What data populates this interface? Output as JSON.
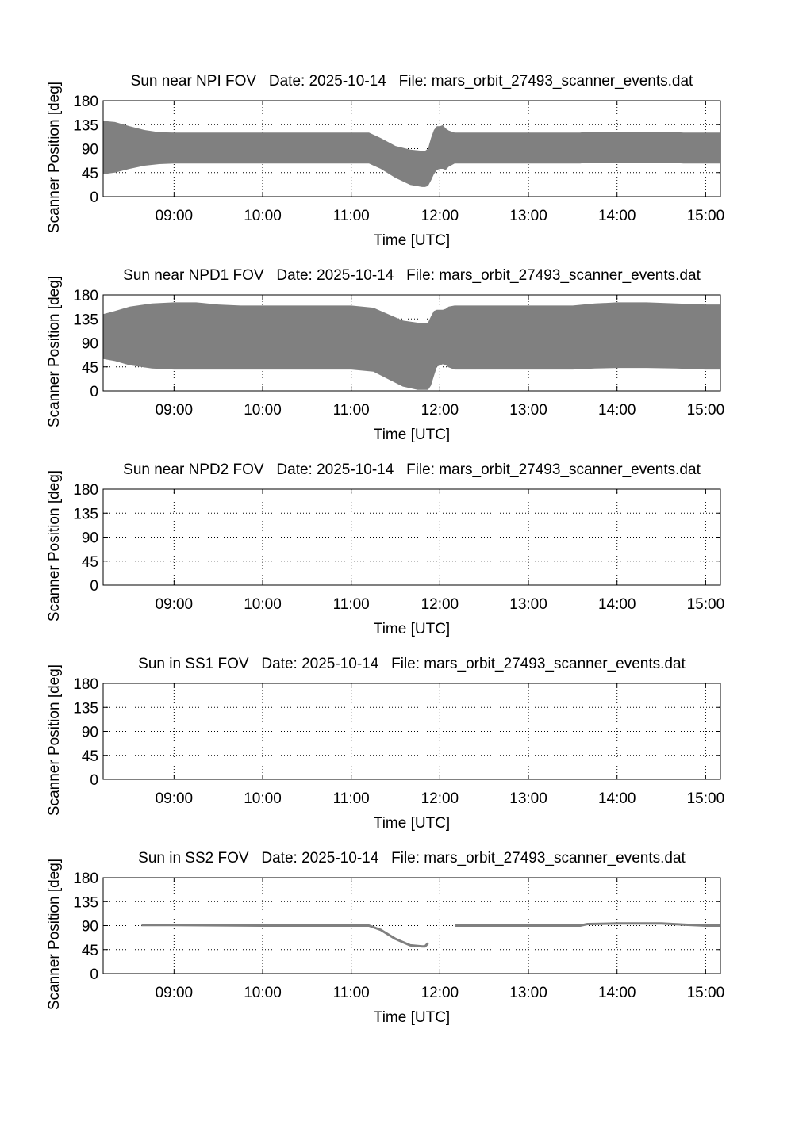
{
  "chart_data": [
    {
      "type": "area",
      "title": "Sun near NPI FOV   Date: 2025-10-14   File: mars_orbit_27493_scanner_events.dat",
      "xlabel": "Time [UTC]",
      "ylabel": "Scanner Position [deg]",
      "xticks": [
        "09:00",
        "10:00",
        "11:00",
        "12:00",
        "13:00",
        "14:00",
        "15:00"
      ],
      "yticks": [
        "0",
        "45",
        "90",
        "135",
        "180"
      ],
      "xlim": [
        "08:12",
        "15:10"
      ],
      "ylim": [
        0,
        180
      ],
      "grid": true,
      "color": "#808080",
      "series": [
        {
          "x": [
            "08:12",
            "08:20",
            "08:30",
            "08:40",
            "08:50",
            "09:00",
            "10:00",
            "11:00",
            "11:12",
            "11:20",
            "11:30",
            "11:40",
            "11:48",
            "11:50",
            "11:52",
            "11:54",
            "11:56",
            "11:58",
            "12:00",
            "12:02",
            "12:04",
            "12:06",
            "12:10",
            "12:20",
            "13:00",
            "13:35",
            "13:40",
            "14:00",
            "14:20",
            "14:35",
            "14:45",
            "15:00",
            "15:10"
          ],
          "low": [
            42,
            45,
            52,
            58,
            61,
            62,
            62,
            62,
            62,
            52,
            35,
            22,
            18,
            18,
            20,
            30,
            42,
            50,
            52,
            52,
            50,
            56,
            62,
            62,
            62,
            62,
            64,
            64,
            64,
            64,
            62,
            62,
            62
          ],
          "high": [
            142,
            140,
            132,
            125,
            121,
            120,
            120,
            120,
            120,
            110,
            95,
            88,
            86,
            86,
            90,
            110,
            125,
            132,
            132,
            134,
            128,
            124,
            120,
            120,
            120,
            120,
            122,
            122,
            122,
            122,
            120,
            120,
            120
          ]
        }
      ]
    },
    {
      "type": "area",
      "title": "Sun near NPD1 FOV   Date: 2025-10-14   File: mars_orbit_27493_scanner_events.dat",
      "xlabel": "Time [UTC]",
      "ylabel": "Scanner Position [deg]",
      "xticks": [
        "09:00",
        "10:00",
        "11:00",
        "12:00",
        "13:00",
        "14:00",
        "15:00"
      ],
      "yticks": [
        "0",
        "45",
        "90",
        "135",
        "180"
      ],
      "xlim": [
        "08:12",
        "15:10"
      ],
      "ylim": [
        0,
        180
      ],
      "grid": true,
      "color": "#808080",
      "series": [
        {
          "x": [
            "08:12",
            "08:20",
            "08:30",
            "08:45",
            "09:00",
            "09:15",
            "09:30",
            "09:45",
            "10:00",
            "11:00",
            "11:15",
            "11:25",
            "11:35",
            "11:45",
            "11:50",
            "11:52",
            "11:54",
            "11:56",
            "11:58",
            "12:00",
            "12:02",
            "12:04",
            "12:06",
            "12:10",
            "12:20",
            "13:00",
            "13:30",
            "13:45",
            "14:00",
            "14:20",
            "14:40",
            "15:00",
            "15:10"
          ],
          "low": [
            60,
            56,
            48,
            42,
            40,
            40,
            40,
            40,
            40,
            40,
            36,
            22,
            8,
            2,
            2,
            2,
            10,
            28,
            45,
            48,
            50,
            48,
            44,
            40,
            40,
            40,
            40,
            42,
            43,
            43,
            42,
            40,
            40
          ],
          "high": [
            144,
            150,
            158,
            164,
            166,
            166,
            162,
            160,
            160,
            160,
            156,
            144,
            132,
            128,
            128,
            128,
            140,
            150,
            152,
            152,
            152,
            154,
            158,
            160,
            160,
            160,
            160,
            164,
            166,
            166,
            164,
            162,
            162
          ]
        }
      ]
    },
    {
      "type": "area",
      "title": "Sun near NPD2 FOV   Date: 2025-10-14   File: mars_orbit_27493_scanner_events.dat",
      "xlabel": "Time [UTC]",
      "ylabel": "Scanner Position [deg]",
      "xticks": [
        "09:00",
        "10:00",
        "11:00",
        "12:00",
        "13:00",
        "14:00",
        "15:00"
      ],
      "yticks": [
        "0",
        "45",
        "90",
        "135",
        "180"
      ],
      "xlim": [
        "08:12",
        "15:10"
      ],
      "ylim": [
        0,
        180
      ],
      "grid": true,
      "color": "#808080",
      "series": []
    },
    {
      "type": "area",
      "title": "Sun in SS1 FOV   Date: 2025-10-14   File: mars_orbit_27493_scanner_events.dat",
      "xlabel": "Time [UTC]",
      "ylabel": "Scanner Position [deg]",
      "xticks": [
        "09:00",
        "10:00",
        "11:00",
        "12:00",
        "13:00",
        "14:00",
        "15:00"
      ],
      "yticks": [
        "0",
        "45",
        "90",
        "135",
        "180"
      ],
      "xlim": [
        "08:12",
        "15:10"
      ],
      "ylim": [
        0,
        180
      ],
      "grid": true,
      "color": "#808080",
      "series": []
    },
    {
      "type": "line",
      "title": "Sun in SS2 FOV   Date: 2025-10-14   File: mars_orbit_27493_scanner_events.dat",
      "xlabel": "Time [UTC]",
      "ylabel": "Scanner Position [deg]",
      "xticks": [
        "09:00",
        "10:00",
        "11:00",
        "12:00",
        "13:00",
        "14:00",
        "15:00"
      ],
      "yticks": [
        "0",
        "45",
        "90",
        "135",
        "180"
      ],
      "xlim": [
        "08:12",
        "15:10"
      ],
      "ylim": [
        0,
        180
      ],
      "grid": true,
      "color": "#808080",
      "series": [
        {
          "x": [
            "08:38",
            "08:50",
            "09:00",
            "10:00",
            "11:00",
            "11:12",
            "11:20",
            "11:30",
            "11:40",
            "11:48",
            "11:50",
            "11:52"
          ],
          "y": [
            91,
            91,
            91,
            90,
            90,
            90,
            82,
            65,
            53,
            51,
            51,
            57
          ]
        },
        {
          "x": [
            "12:10",
            "12:30",
            "13:00",
            "13:35",
            "13:40",
            "14:00",
            "14:30",
            "14:45",
            "15:00",
            "15:10"
          ],
          "y": [
            90,
            90,
            90,
            90,
            93,
            94,
            94,
            92,
            90,
            90
          ]
        }
      ]
    }
  ]
}
